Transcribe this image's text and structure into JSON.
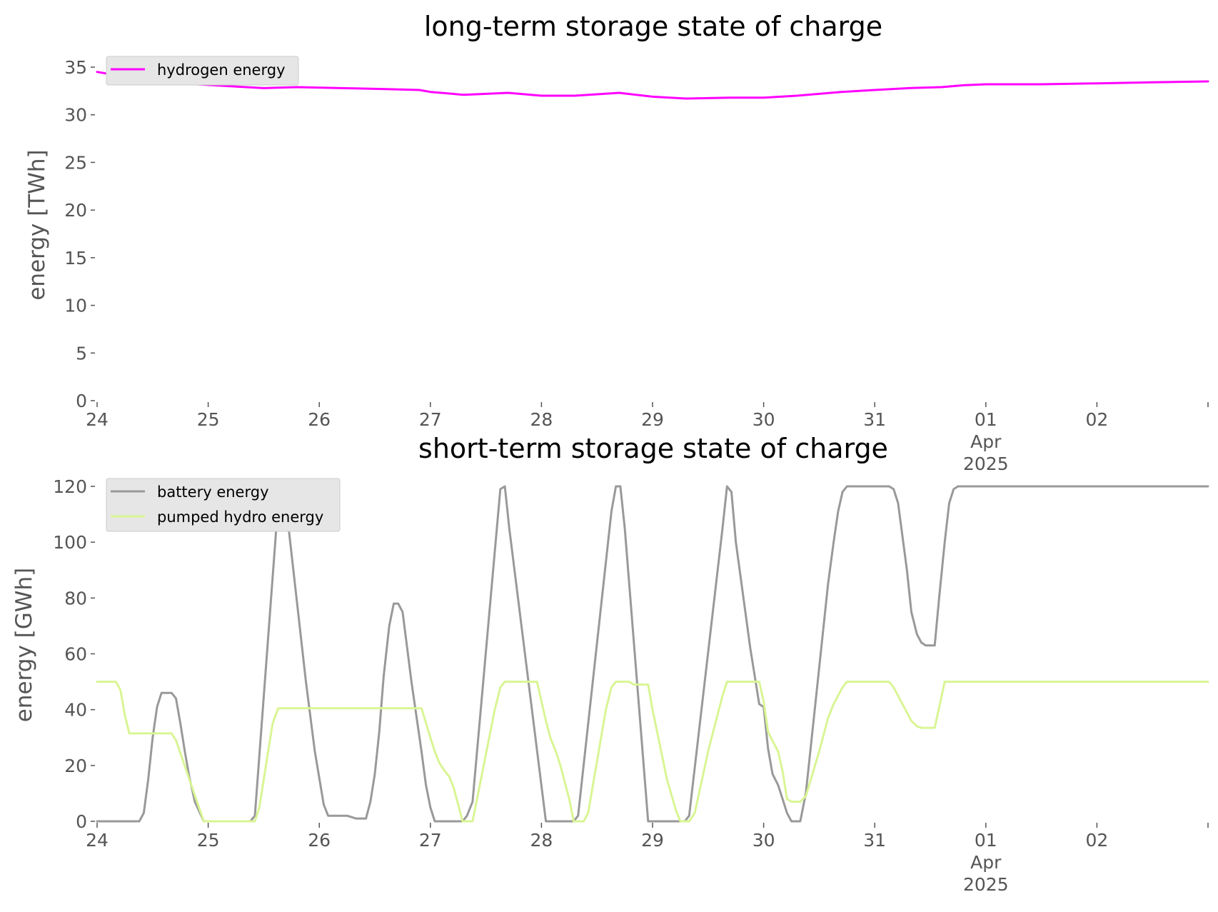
{
  "chart_data": [
    {
      "type": "line",
      "title": "long-term storage state of charge",
      "ylabel": "energy [TWh]",
      "xlabel": "",
      "x_ticks": [
        {
          "day": 24,
          "label": "24"
        },
        {
          "day": 25,
          "label": "25"
        },
        {
          "day": 26,
          "label": "26"
        },
        {
          "day": 27,
          "label": "27"
        },
        {
          "day": 28,
          "label": "28"
        },
        {
          "day": 29,
          "label": "29"
        },
        {
          "day": 30,
          "label": "30"
        },
        {
          "day": 31,
          "label": "31"
        },
        {
          "day": 32,
          "label": "01",
          "sub1": "Apr",
          "sub2": "2025"
        },
        {
          "day": 33,
          "label": "02"
        }
      ],
      "xlim": [
        24,
        34
      ],
      "ylim": [
        0,
        35
      ],
      "yticks": [
        0,
        5,
        10,
        15,
        20,
        25,
        30,
        35
      ],
      "grid": false,
      "legend_position": "top-left",
      "series": [
        {
          "name": "hydrogen energy",
          "color": "#ff00ff",
          "points": [
            [
              24.0,
              34.5
            ],
            [
              24.3,
              33.9
            ],
            [
              24.6,
              33.4
            ],
            [
              24.9,
              33.2
            ],
            [
              25.2,
              33.0
            ],
            [
              25.5,
              32.8
            ],
            [
              25.8,
              32.9
            ],
            [
              26.2,
              32.8
            ],
            [
              26.6,
              32.7
            ],
            [
              26.9,
              32.6
            ],
            [
              27.0,
              32.4
            ],
            [
              27.3,
              32.1
            ],
            [
              27.7,
              32.3
            ],
            [
              28.0,
              32.0
            ],
            [
              28.3,
              32.0
            ],
            [
              28.7,
              32.3
            ],
            [
              29.0,
              31.9
            ],
            [
              29.3,
              31.7
            ],
            [
              29.7,
              31.8
            ],
            [
              30.0,
              31.8
            ],
            [
              30.3,
              32.0
            ],
            [
              30.7,
              32.4
            ],
            [
              31.0,
              32.6
            ],
            [
              31.3,
              32.8
            ],
            [
              31.6,
              32.9
            ],
            [
              31.8,
              33.1
            ],
            [
              32.0,
              33.2
            ],
            [
              32.5,
              33.2
            ],
            [
              33.0,
              33.3
            ],
            [
              33.5,
              33.4
            ],
            [
              34.0,
              33.5
            ]
          ]
        }
      ]
    },
    {
      "type": "line",
      "title": "short-term storage state of charge",
      "ylabel": "energy [GWh]",
      "xlabel": "",
      "x_ticks": [
        {
          "day": 24,
          "label": "24"
        },
        {
          "day": 25,
          "label": "25"
        },
        {
          "day": 26,
          "label": "26"
        },
        {
          "day": 27,
          "label": "27"
        },
        {
          "day": 28,
          "label": "28"
        },
        {
          "day": 29,
          "label": "29"
        },
        {
          "day": 30,
          "label": "30"
        },
        {
          "day": 31,
          "label": "31"
        },
        {
          "day": 32,
          "label": "01",
          "sub1": "Apr",
          "sub2": "2025"
        },
        {
          "day": 33,
          "label": "02"
        }
      ],
      "xlim": [
        24,
        34
      ],
      "ylim": [
        0,
        120
      ],
      "yticks": [
        0,
        20,
        40,
        60,
        80,
        100,
        120
      ],
      "grid": false,
      "legend_position": "top-left",
      "series": [
        {
          "name": "battery energy",
          "color": "#999999",
          "points": [
            [
              24.0,
              0
            ],
            [
              24.38,
              0
            ],
            [
              24.42,
              3
            ],
            [
              24.46,
              15
            ],
            [
              24.5,
              30
            ],
            [
              24.54,
              41
            ],
            [
              24.58,
              46
            ],
            [
              24.67,
              46
            ],
            [
              24.71,
              44
            ],
            [
              24.75,
              35
            ],
            [
              24.79,
              25
            ],
            [
              24.83,
              16
            ],
            [
              24.88,
              7
            ],
            [
              24.96,
              0
            ],
            [
              25.38,
              0
            ],
            [
              25.42,
              2
            ],
            [
              25.63,
              114
            ],
            [
              25.67,
              120
            ],
            [
              25.71,
              110
            ],
            [
              25.88,
              50
            ],
            [
              25.96,
              25
            ],
            [
              26.04,
              6
            ],
            [
              26.08,
              2
            ],
            [
              26.25,
              2
            ],
            [
              26.29,
              1.5
            ],
            [
              26.33,
              1
            ],
            [
              26.42,
              1
            ],
            [
              26.46,
              7
            ],
            [
              26.5,
              17
            ],
            [
              26.54,
              32
            ],
            [
              26.58,
              52
            ],
            [
              26.63,
              70
            ],
            [
              26.67,
              78
            ],
            [
              26.71,
              78
            ],
            [
              26.75,
              75
            ],
            [
              26.83,
              50
            ],
            [
              26.92,
              25
            ],
            [
              26.96,
              13
            ],
            [
              27.0,
              5
            ],
            [
              27.04,
              0
            ],
            [
              27.29,
              0
            ],
            [
              27.33,
              2
            ],
            [
              27.38,
              7
            ],
            [
              27.63,
              119
            ],
            [
              27.67,
              120
            ],
            [
              27.71,
              105
            ],
            [
              28.04,
              0
            ],
            [
              28.29,
              0
            ],
            [
              28.33,
              2
            ],
            [
              28.63,
              111
            ],
            [
              28.67,
              120
            ],
            [
              28.71,
              120
            ],
            [
              28.75,
              105
            ],
            [
              28.96,
              0
            ],
            [
              29.29,
              0
            ],
            [
              29.33,
              2
            ],
            [
              29.63,
              105
            ],
            [
              29.67,
              120
            ],
            [
              29.71,
              118
            ],
            [
              29.75,
              100
            ],
            [
              29.88,
              62
            ],
            [
              29.96,
              42
            ],
            [
              30.0,
              41
            ],
            [
              30.04,
              26
            ],
            [
              30.08,
              17
            ],
            [
              30.13,
              13
            ],
            [
              30.17,
              8
            ],
            [
              30.21,
              3
            ],
            [
              30.25,
              0
            ],
            [
              30.33,
              0
            ],
            [
              30.38,
              10
            ],
            [
              30.5,
              55
            ],
            [
              30.58,
              85
            ],
            [
              30.63,
              100
            ],
            [
              30.67,
              111
            ],
            [
              30.71,
              118
            ],
            [
              30.75,
              120
            ],
            [
              31.13,
              120
            ],
            [
              31.17,
              119
            ],
            [
              31.21,
              114
            ],
            [
              31.29,
              90
            ],
            [
              31.33,
              75
            ],
            [
              31.38,
              67
            ],
            [
              31.42,
              64
            ],
            [
              31.46,
              63
            ],
            [
              31.54,
              63
            ],
            [
              31.58,
              80
            ],
            [
              31.63,
              100
            ],
            [
              31.67,
              114
            ],
            [
              31.71,
              119
            ],
            [
              31.75,
              120
            ],
            [
              34.0,
              120
            ]
          ]
        },
        {
          "name": "pumped hydro energy",
          "color": "#d9f594",
          "points": [
            [
              24.0,
              50
            ],
            [
              24.17,
              50
            ],
            [
              24.21,
              47
            ],
            [
              24.25,
              38
            ],
            [
              24.29,
              31.5
            ],
            [
              24.67,
              31.5
            ],
            [
              24.71,
              29
            ],
            [
              24.96,
              0
            ],
            [
              25.42,
              0
            ],
            [
              25.46,
              5
            ],
            [
              25.58,
              35
            ],
            [
              25.63,
              40.5
            ],
            [
              26.92,
              40.5
            ],
            [
              27.0,
              30
            ],
            [
              27.04,
              25
            ],
            [
              27.08,
              21
            ],
            [
              27.13,
              18
            ],
            [
              27.17,
              16
            ],
            [
              27.21,
              12
            ],
            [
              27.25,
              6
            ],
            [
              27.29,
              0
            ],
            [
              27.38,
              0
            ],
            [
              27.42,
              8
            ],
            [
              27.58,
              40
            ],
            [
              27.63,
              48
            ],
            [
              27.67,
              50
            ],
            [
              27.96,
              50
            ],
            [
              28.0,
              43
            ],
            [
              28.04,
              36
            ],
            [
              28.08,
              30
            ],
            [
              28.13,
              25
            ],
            [
              28.17,
              20
            ],
            [
              28.25,
              8
            ],
            [
              28.29,
              0
            ],
            [
              28.38,
              0
            ],
            [
              28.42,
              3
            ],
            [
              28.58,
              40
            ],
            [
              28.63,
              48
            ],
            [
              28.67,
              50
            ],
            [
              28.79,
              50
            ],
            [
              28.83,
              49
            ],
            [
              28.96,
              49
            ],
            [
              29.0,
              40
            ],
            [
              29.13,
              15
            ],
            [
              29.21,
              4
            ],
            [
              29.25,
              0
            ],
            [
              29.33,
              0
            ],
            [
              29.38,
              3
            ],
            [
              29.5,
              25
            ],
            [
              29.63,
              45
            ],
            [
              29.67,
              50
            ],
            [
              29.96,
              50
            ],
            [
              30.0,
              43
            ],
            [
              30.04,
              32
            ],
            [
              30.13,
              25
            ],
            [
              30.17,
              18
            ],
            [
              30.21,
              8
            ],
            [
              30.25,
              7
            ],
            [
              30.33,
              7
            ],
            [
              30.38,
              9
            ],
            [
              30.5,
              25
            ],
            [
              30.58,
              37
            ],
            [
              30.63,
              42
            ],
            [
              30.71,
              48
            ],
            [
              30.75,
              50
            ],
            [
              31.13,
              50
            ],
            [
              31.17,
              48
            ],
            [
              31.25,
              42
            ],
            [
              31.33,
              36
            ],
            [
              31.38,
              34
            ],
            [
              31.42,
              33.5
            ],
            [
              31.54,
              33.5
            ],
            [
              31.63,
              50
            ],
            [
              34.0,
              50
            ]
          ]
        }
      ]
    }
  ]
}
